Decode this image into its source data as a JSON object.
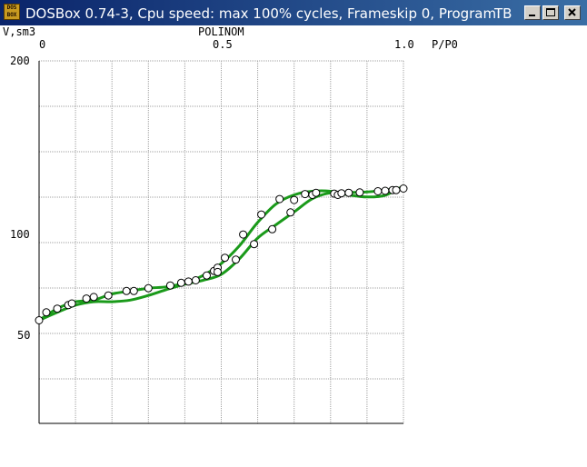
{
  "window": {
    "title": "DOSBox 0.74-3, Cpu speed: max 100% cycles, Frameskip  0, Program:",
    "program": "TB",
    "app_icon_text": [
      "DOS",
      "BOX"
    ]
  },
  "plot": {
    "title": "POLINOM",
    "ylabel": "V,sm3",
    "xlabel": "P/P0",
    "x_ticks": [
      "0",
      "0.5",
      "1.0"
    ],
    "y_ticks": [
      "200",
      "100",
      "50"
    ]
  },
  "colors": {
    "titlebar": "#0a246a",
    "curve": "#1a9a1a",
    "grid": "#a0a0a0"
  },
  "chart_data": {
    "type": "scatter",
    "title": "POLINOM",
    "xlabel": "P/P0",
    "ylabel": "V,sm3",
    "xlim": [
      0,
      1.0
    ],
    "ylim": [
      30,
      200
    ],
    "y_scale": "log",
    "grid": true,
    "points": [
      [
        0.0,
        37
      ],
      [
        0.02,
        41
      ],
      [
        0.05,
        43
      ],
      [
        0.08,
        45
      ],
      [
        0.09,
        46
      ],
      [
        0.13,
        49
      ],
      [
        0.15,
        50
      ],
      [
        0.19,
        51
      ],
      [
        0.24,
        54
      ],
      [
        0.26,
        54
      ],
      [
        0.3,
        56
      ],
      [
        0.36,
        58
      ],
      [
        0.39,
        60
      ],
      [
        0.41,
        61
      ],
      [
        0.43,
        62
      ],
      [
        0.46,
        66
      ],
      [
        0.48,
        70
      ],
      [
        0.49,
        73
      ],
      [
        0.49,
        69
      ],
      [
        0.51,
        83
      ],
      [
        0.54,
        81
      ],
      [
        0.56,
        112
      ],
      [
        0.59,
        99
      ],
      [
        0.61,
        145
      ],
      [
        0.64,
        120
      ],
      [
        0.66,
        177
      ],
      [
        0.69,
        149
      ],
      [
        0.7,
        175
      ],
      [
        0.73,
        189
      ],
      [
        0.75,
        187
      ],
      [
        0.76,
        192
      ],
      [
        0.81,
        190
      ],
      [
        0.82,
        187
      ],
      [
        0.83,
        191
      ],
      [
        0.85,
        192
      ],
      [
        0.88,
        193
      ],
      [
        0.93,
        196
      ],
      [
        0.95,
        197
      ],
      [
        0.97,
        199
      ],
      [
        0.98,
        199
      ],
      [
        1.0,
        203
      ]
    ],
    "series": [
      {
        "x": [
          0.0,
          0.05,
          0.1,
          0.15,
          0.2,
          0.25,
          0.3,
          0.35,
          0.4,
          0.45,
          0.5,
          0.55,
          0.6,
          0.65,
          0.7,
          0.75,
          0.8,
          0.85,
          0.9,
          0.95,
          1.0
        ],
        "values": [
          37,
          43,
          47,
          48,
          52,
          54,
          56,
          57,
          60,
          66,
          77,
          97,
          131,
          166,
          187,
          196,
          196,
          187,
          182,
          186,
          210
        ]
      },
      {
        "x": [
          0.0,
          0.05,
          0.1,
          0.15,
          0.2,
          0.25,
          0.3,
          0.35,
          0.4,
          0.45,
          0.5,
          0.55,
          0.6,
          0.65,
          0.7,
          0.75,
          0.8,
          0.85,
          0.9,
          0.95,
          1.0
        ],
        "values": [
          37,
          41,
          45,
          47,
          47,
          48,
          51,
          55,
          59,
          62,
          67,
          82,
          107,
          127,
          150,
          178,
          192,
          193,
          194,
          199,
          205
        ]
      }
    ]
  }
}
